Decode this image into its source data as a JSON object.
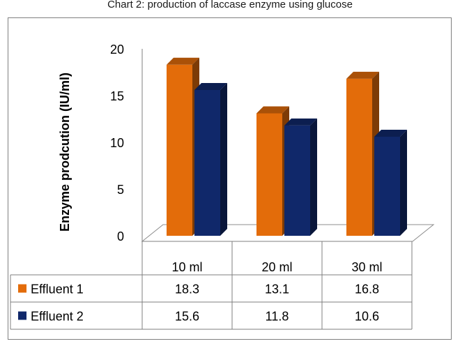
{
  "chart_data": {
    "type": "bar",
    "title": "Chart 2: production of laccase enzyme using glucose",
    "ylabel": "Enzyme prodcution (IU/ml)",
    "xlabel": "",
    "categories": [
      "10 ml",
      "20 ml",
      "30 ml"
    ],
    "series": [
      {
        "name": "Effluent 1",
        "values": [
          18.3,
          13.1,
          16.8
        ],
        "color": "#E36C0A"
      },
      {
        "name": "Effluent 2",
        "values": [
          15.6,
          11.8,
          10.6
        ],
        "color": "#10286A"
      }
    ],
    "ylim": [
      0,
      20
    ],
    "yticks": [
      0,
      5,
      10,
      15,
      20
    ],
    "grid": false,
    "legend": "data-table",
    "style": "3d-clustered-column"
  }
}
